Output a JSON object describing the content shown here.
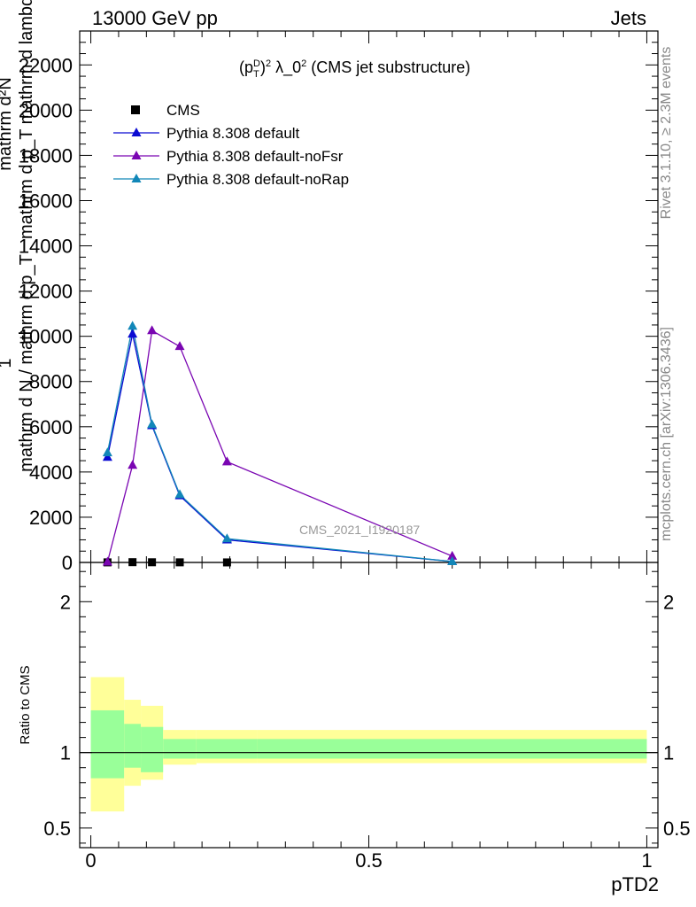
{
  "header": {
    "left": "13000 GeV pp",
    "right": "Jets"
  },
  "side_text": {
    "rivet": "Rivet 3.1.10, ≥ 2.3M events",
    "mcplots": "mcplots.cern.ch [arXiv:1306.3436]"
  },
  "chart_data": [
    {
      "type": "line",
      "title": "(p_T^D)^2 λ_0^2 (CMS jet substructure)",
      "ylabel_lines": [
        "mathrm d²N",
        "mathrm d p_T mathrm d lambda",
        "1",
        "mathrm d N / mathrm d p_T"
      ],
      "watermark": "CMS_2021_I1920187",
      "ylim": [
        0,
        23500
      ],
      "xlim": [
        -0.02,
        1.02
      ],
      "yticks": [
        0,
        2000,
        4000,
        6000,
        8000,
        10000,
        12000,
        14000,
        16000,
        18000,
        20000,
        22000
      ],
      "ytick_labels": [
        "0",
        "2000",
        "4000",
        "6000",
        "8000",
        "10000",
        "12000",
        "14000",
        "16000",
        "18000",
        "20000",
        "22000"
      ],
      "legend_position": "top-left",
      "series": [
        {
          "name": "CMS",
          "color": "#000000",
          "marker": "square",
          "x": [
            0.03,
            0.075,
            0.11,
            0.16,
            0.245
          ],
          "y": [
            4,
            12,
            8,
            5,
            2
          ]
        },
        {
          "name": "Pythia 8.308 default",
          "color": "#0a0ad2",
          "marker": "triangle",
          "x": [
            0.03,
            0.075,
            0.11,
            0.16,
            0.245,
            0.65
          ],
          "y": [
            4650,
            10100,
            6050,
            2950,
            1000,
            40
          ]
        },
        {
          "name": "Pythia 8.308 default-noFsr",
          "color": "#7a06b2",
          "marker": "triangle",
          "x": [
            0.03,
            0.075,
            0.11,
            0.16,
            0.245,
            0.65
          ],
          "y": [
            20,
            4300,
            10250,
            9550,
            4450,
            280
          ]
        },
        {
          "name": "Pythia 8.308 default-noRap",
          "color": "#1287b8",
          "marker": "triangle",
          "x": [
            0.03,
            0.075,
            0.11,
            0.16,
            0.245,
            0.65
          ],
          "y": [
            4850,
            10450,
            6100,
            3000,
            1050,
            40
          ]
        }
      ]
    },
    {
      "type": "area",
      "ylabel": "Ratio to CMS",
      "xlabel": "pTD2",
      "ylim": [
        0.37,
        2.26
      ],
      "xlim": [
        -0.02,
        1.02
      ],
      "yticks": [
        0.5,
        1,
        2
      ],
      "ytick_labels": [
        "0.5",
        "1",
        "2"
      ],
      "xticks": [
        0,
        0.5,
        1
      ],
      "xtick_labels": [
        "0",
        "0.5",
        "1"
      ],
      "bins": [
        {
          "lo": 0.0,
          "hi": 0.06,
          "yellow": [
            0.61,
            1.5
          ],
          "green": [
            0.83,
            1.28
          ]
        },
        {
          "lo": 0.06,
          "hi": 0.09,
          "yellow": [
            0.78,
            1.35
          ],
          "green": [
            0.9,
            1.19
          ]
        },
        {
          "lo": 0.09,
          "hi": 0.13,
          "yellow": [
            0.82,
            1.31
          ],
          "green": [
            0.87,
            1.17
          ]
        },
        {
          "lo": 0.13,
          "hi": 0.19,
          "yellow": [
            0.92,
            1.15
          ],
          "green": [
            0.96,
            1.09
          ]
        },
        {
          "lo": 0.19,
          "hi": 0.3,
          "yellow": [
            0.93,
            1.15
          ],
          "green": [
            0.96,
            1.09
          ]
        },
        {
          "lo": 0.3,
          "hi": 1.0,
          "yellow": [
            0.93,
            1.15
          ],
          "green": [
            0.96,
            1.09
          ]
        }
      ],
      "reference": 1
    }
  ]
}
